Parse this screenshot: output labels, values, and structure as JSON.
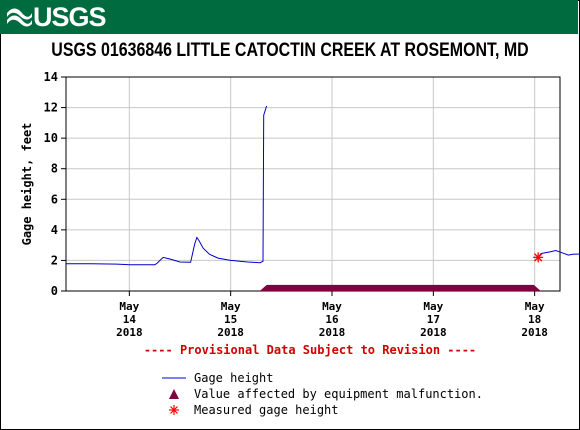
{
  "header": {
    "logo_text": "USGS",
    "logo_icon": "usgs-wave-icon",
    "brand_color": "#006b3f"
  },
  "chart_title": "USGS 01636846 LITTLE CATOCTIN CREEK AT ROSEMONT, MD",
  "notice": "---- Provisional Data Subject to Revision ----",
  "legend": {
    "line_label": "Gage height",
    "malfunction_label": "Value affected by equipment malfunction.",
    "measured_label": "Measured gage height"
  },
  "chart_data": {
    "type": "line",
    "title": "USGS 01636846 LITTLE CATOCTIN CREEK AT ROSEMONT, MD",
    "ylabel": "Gage height, feet",
    "xlabel": "",
    "ylim": [
      0,
      14
    ],
    "yticks": [
      0,
      2,
      4,
      6,
      8,
      10,
      12,
      14
    ],
    "xlim": [
      "2018-05-13T09:00",
      "2018-05-18T06:00"
    ],
    "xticks": [
      {
        "at": "2018-05-14",
        "label": [
          "May",
          "14",
          "2018"
        ]
      },
      {
        "at": "2018-05-15",
        "label": [
          "May",
          "15",
          "2018"
        ]
      },
      {
        "at": "2018-05-16",
        "label": [
          "May",
          "16",
          "2018"
        ]
      },
      {
        "at": "2018-05-17",
        "label": [
          "May",
          "17",
          "2018"
        ]
      },
      {
        "at": "2018-05-18",
        "label": [
          "May",
          "18",
          "2018"
        ]
      }
    ],
    "grid": true,
    "series": [
      {
        "name": "Gage height",
        "color": "#0000cc",
        "points": [
          [
            "2018-05-13T09:00",
            1.78
          ],
          [
            "2018-05-13T15:00",
            1.78
          ],
          [
            "2018-05-13T21:00",
            1.76
          ],
          [
            "2018-05-14T00:00",
            1.72
          ],
          [
            "2018-05-14T06:00",
            1.72
          ],
          [
            "2018-05-14T06:30",
            1.8
          ],
          [
            "2018-05-14T08:00",
            2.2
          ],
          [
            "2018-05-14T09:30",
            2.1
          ],
          [
            "2018-05-14T12:00",
            1.9
          ],
          [
            "2018-05-14T14:30",
            1.88
          ],
          [
            "2018-05-14T15:30",
            3.1
          ],
          [
            "2018-05-14T16:00",
            3.5
          ],
          [
            "2018-05-14T16:30",
            3.3
          ],
          [
            "2018-05-14T17:30",
            2.8
          ],
          [
            "2018-05-14T19:00",
            2.4
          ],
          [
            "2018-05-14T21:00",
            2.15
          ],
          [
            "2018-05-15T00:00",
            2.0
          ],
          [
            "2018-05-15T04:00",
            1.9
          ],
          [
            "2018-05-15T07:00",
            1.85
          ],
          [
            "2018-05-15T07:40",
            1.95
          ],
          [
            "2018-05-15T07:50",
            11.5
          ],
          [
            "2018-05-15T08:30",
            12.1
          ]
        ]
      },
      {
        "name": "Gage height",
        "color": "#0000cc",
        "points": [
          [
            "2018-05-18T00:30",
            2.1
          ],
          [
            "2018-05-18T01:30",
            2.45
          ],
          [
            "2018-05-18T02:30",
            2.5
          ],
          [
            "2018-05-18T03:30",
            2.55
          ],
          [
            "2018-05-18T05:00",
            2.65
          ],
          [
            "2018-05-18T06:30",
            2.5
          ],
          [
            "2018-05-18T08:00",
            2.35
          ],
          [
            "2018-05-18T09:00",
            2.4
          ],
          [
            "2018-05-18T11:00",
            2.42
          ]
        ]
      }
    ],
    "malfunction_period": {
      "name": "Value affected by equipment malfunction.",
      "start": "2018-05-15T07:50",
      "end": "2018-05-18T00:30",
      "color": "#800040"
    },
    "measured": [
      {
        "name": "Measured gage height",
        "x": "2018-05-18T00:50",
        "y": 2.2,
        "color": "#ff0000"
      }
    ]
  }
}
